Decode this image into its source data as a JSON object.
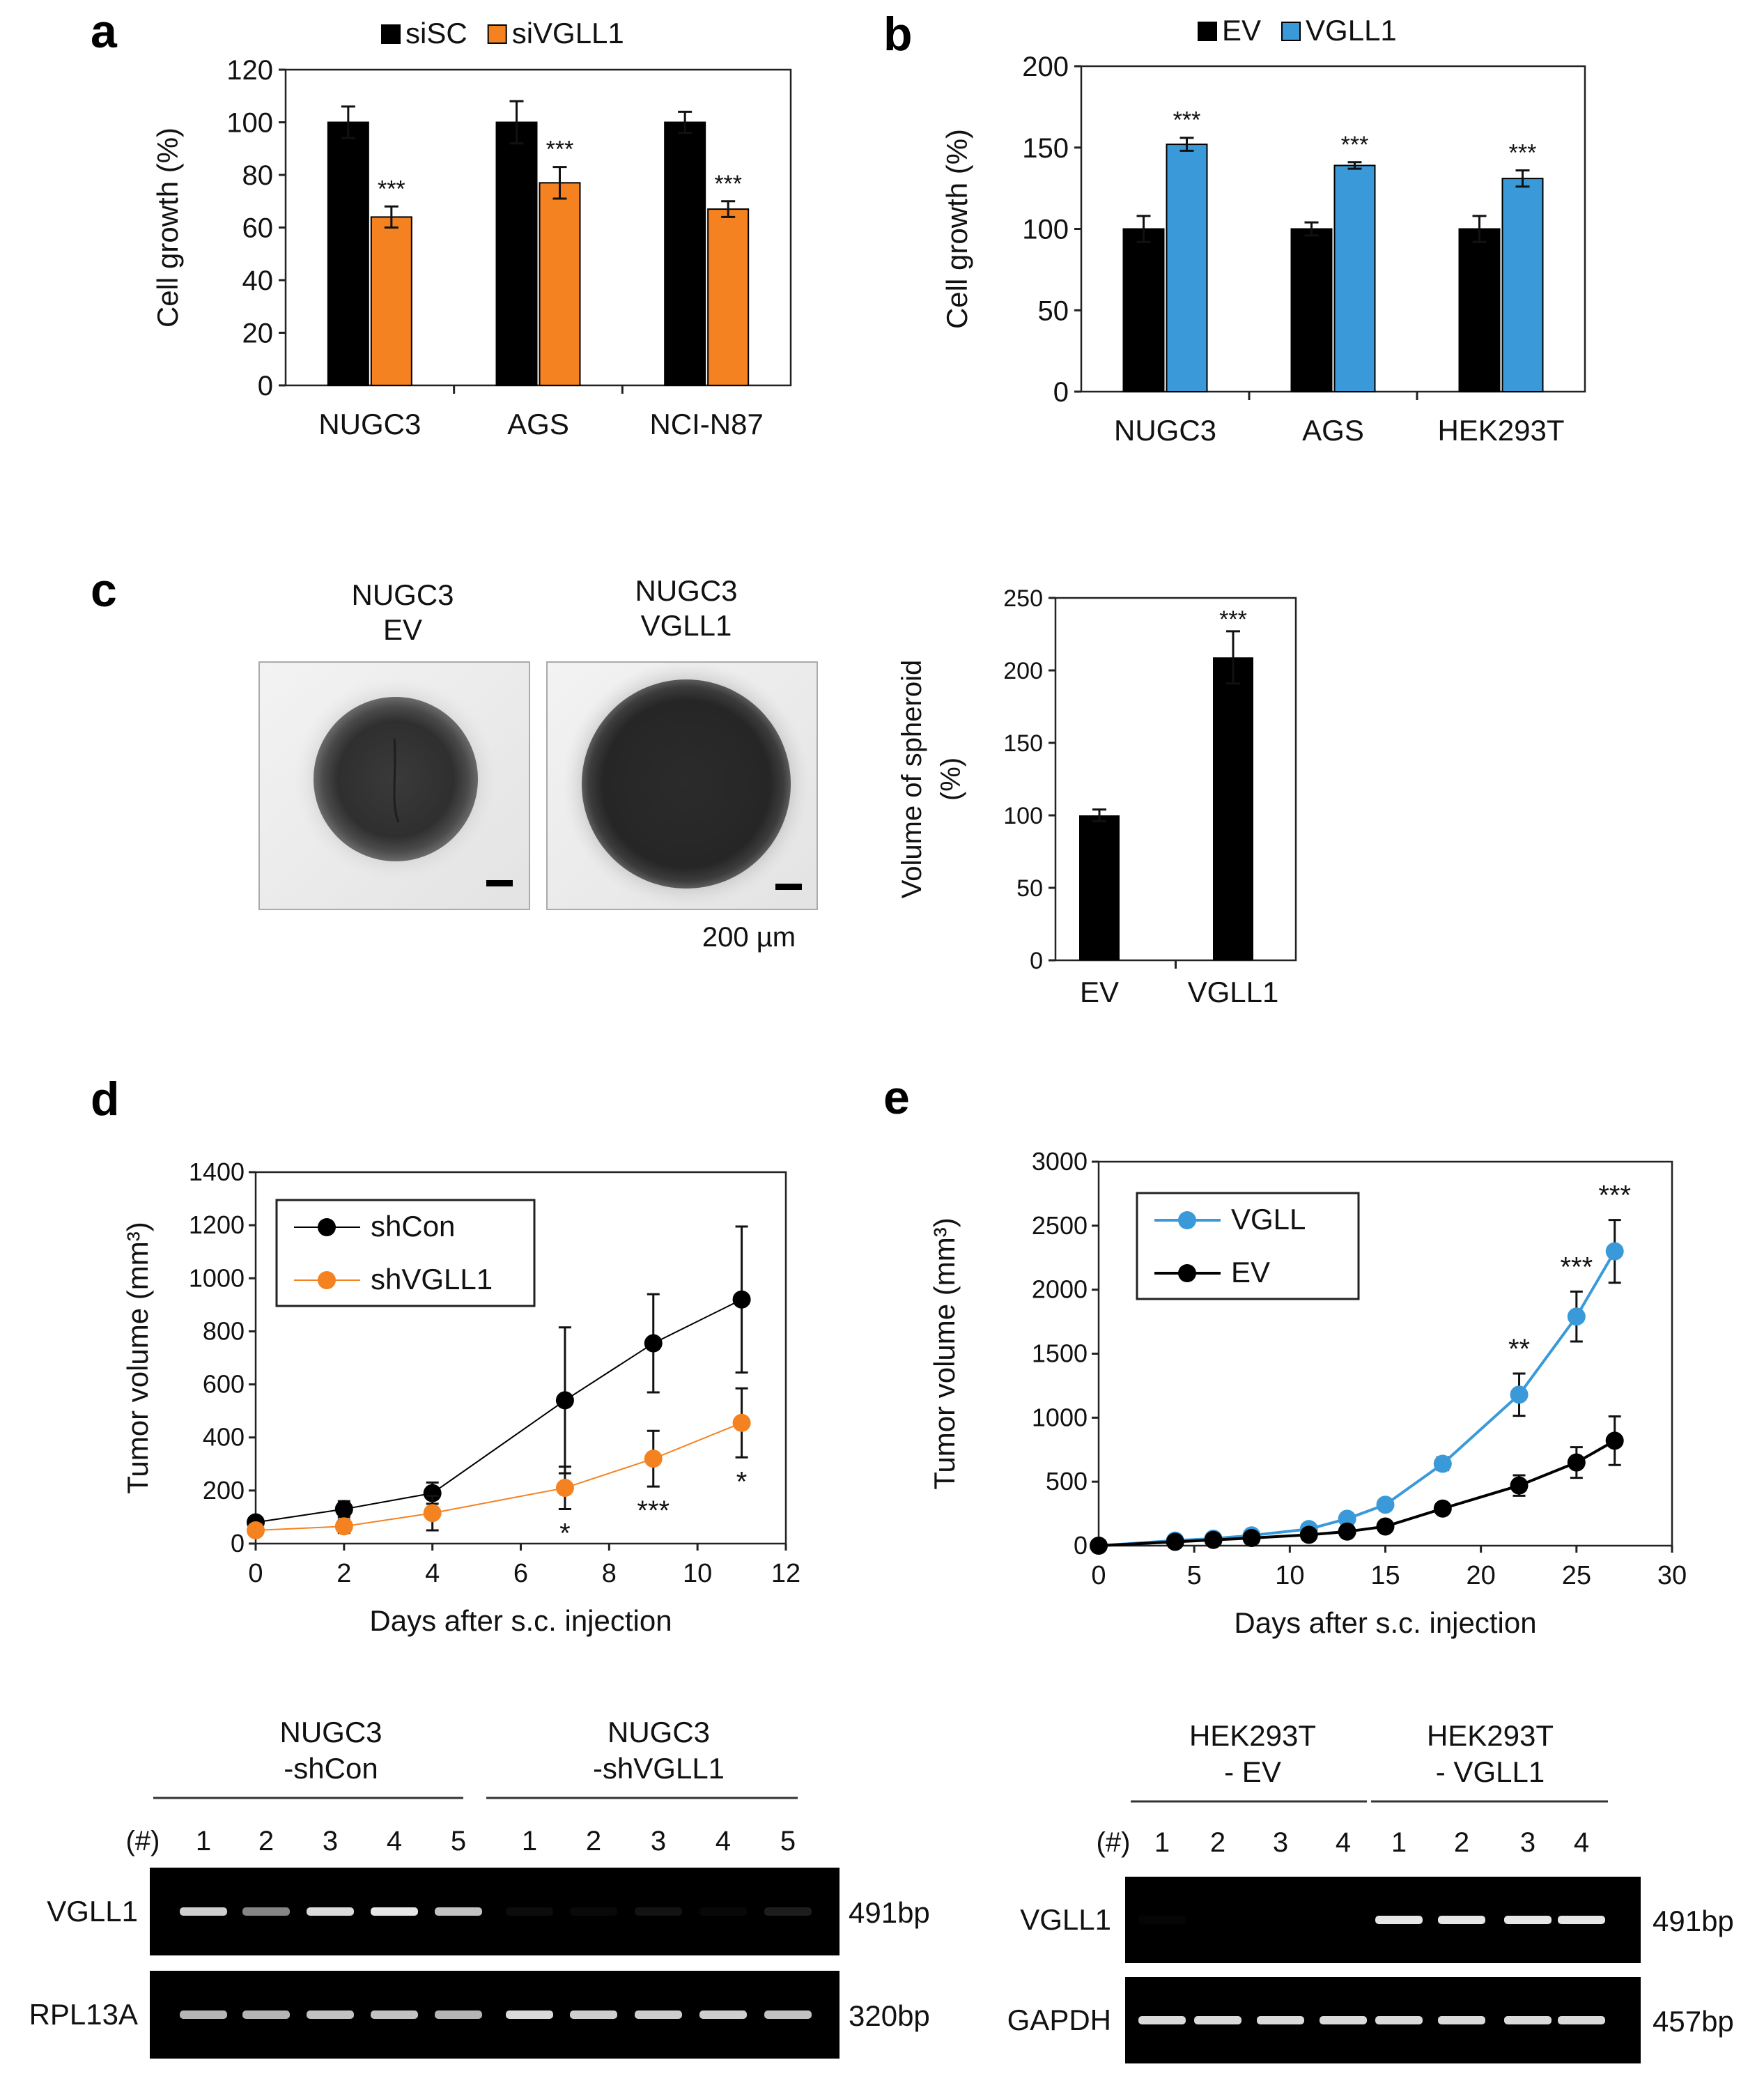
{
  "panels": {
    "a": {
      "label": "a"
    },
    "b": {
      "label": "b"
    },
    "c": {
      "label": "c",
      "image1_title": [
        "NUGC3",
        "EV"
      ],
      "image2_title": [
        "NUGC3",
        "VGLL1"
      ],
      "scale_bar": "200 µm"
    },
    "d": {
      "label": "d"
    },
    "e": {
      "label": "e"
    }
  },
  "colors": {
    "black": "#000000",
    "orange": "#f58220",
    "blue": "#3a9ad9",
    "gel_band": "#f2f2f2"
  },
  "chart_data": [
    {
      "id": "a",
      "type": "bar",
      "title": "",
      "ylabel": "Cell growth (%)",
      "xlabel": "",
      "ylim": [
        0,
        120
      ],
      "yticks": [
        0,
        20,
        40,
        60,
        80,
        100,
        120
      ],
      "categories": [
        "NUGC3",
        "AGS",
        "NCI-N87"
      ],
      "series": [
        {
          "name": "siSC",
          "values": [
            100,
            100,
            100
          ],
          "errors": [
            6,
            8,
            4
          ],
          "color": "#000000"
        },
        {
          "name": "siVGLL1",
          "values": [
            64,
            77,
            67
          ],
          "errors": [
            4,
            6,
            3
          ],
          "color": "#f58220"
        }
      ],
      "annotations": [
        "***",
        "***",
        "***"
      ],
      "legend": "top"
    },
    {
      "id": "b",
      "type": "bar",
      "title": "",
      "ylabel": "Cell growth (%)",
      "xlabel": "",
      "ylim": [
        0,
        200
      ],
      "yticks": [
        0,
        50,
        100,
        150,
        200
      ],
      "categories": [
        "NUGC3",
        "AGS",
        "HEK293T"
      ],
      "series": [
        {
          "name": "EV",
          "values": [
            100,
            100,
            100
          ],
          "errors": [
            8,
            4,
            8
          ],
          "color": "#000000"
        },
        {
          "name": "VGLL1",
          "values": [
            152,
            139,
            131
          ],
          "errors": [
            4,
            2,
            5
          ],
          "color": "#3a9ad9"
        }
      ],
      "annotations": [
        "***",
        "***",
        "***"
      ],
      "legend": "top"
    },
    {
      "id": "c",
      "type": "bar",
      "title": "",
      "ylabel": [
        "Volume of spheroid",
        "(%)"
      ],
      "xlabel": "",
      "ylim": [
        0,
        250
      ],
      "yticks": [
        0,
        50,
        100,
        150,
        200,
        250
      ],
      "categories": [
        "EV",
        "VGLL1"
      ],
      "values": [
        100,
        209
      ],
      "errors": [
        4,
        18
      ],
      "annotations": [
        "",
        "***"
      ]
    },
    {
      "id": "d",
      "type": "line",
      "title": "",
      "xlabel": "Days after s.c. injection",
      "ylabel": "Tumor volume (mm³)",
      "xlim": [
        0,
        12
      ],
      "xticks": [
        0,
        2,
        4,
        6,
        8,
        10,
        12
      ],
      "ylim": [
        0,
        1400
      ],
      "yticks": [
        0,
        200,
        400,
        600,
        800,
        1000,
        1200,
        1400
      ],
      "series": [
        {
          "name": "shCon",
          "color": "#000000",
          "x": [
            0,
            2,
            4,
            7,
            9,
            11
          ],
          "y": [
            80,
            130,
            190,
            540,
            755,
            920
          ],
          "errors": [
            20,
            30,
            40,
            275,
            185,
            275
          ]
        },
        {
          "name": "shVGLL1",
          "color": "#f58220",
          "x": [
            0,
            2,
            4,
            7,
            9,
            11
          ],
          "y": [
            50,
            65,
            115,
            210,
            320,
            455
          ],
          "errors": [
            15,
            25,
            65,
            80,
            105,
            130
          ]
        }
      ],
      "annotations": [
        {
          "x": 7,
          "text": "*"
        },
        {
          "x": 9,
          "text": "***"
        },
        {
          "x": 11,
          "text": "*"
        }
      ],
      "legend": "top-left"
    },
    {
      "id": "e",
      "type": "line",
      "title": "",
      "xlabel": "Days after s.c. injection",
      "ylabel": "Tumor volume (mm³)",
      "xlim": [
        0,
        30
      ],
      "xticks": [
        0,
        5,
        10,
        15,
        20,
        25,
        30
      ],
      "ylim": [
        0,
        3000
      ],
      "yticks": [
        0,
        500,
        1000,
        1500,
        2000,
        2500,
        3000
      ],
      "series": [
        {
          "name": "VGLL",
          "color": "#3a9ad9",
          "x": [
            0,
            4,
            6,
            8,
            11,
            13,
            15,
            18,
            22,
            25,
            27
          ],
          "y": [
            0,
            40,
            55,
            80,
            130,
            210,
            320,
            640,
            1180,
            1790,
            2300
          ],
          "errors": [
            5,
            10,
            10,
            15,
            20,
            30,
            40,
            50,
            165,
            195,
            245
          ]
        },
        {
          "name": "EV",
          "color": "#000000",
          "x": [
            0,
            4,
            6,
            8,
            11,
            13,
            15,
            18,
            22,
            25,
            27
          ],
          "y": [
            0,
            30,
            45,
            60,
            85,
            110,
            150,
            290,
            470,
            650,
            820
          ],
          "errors": [
            5,
            10,
            10,
            10,
            15,
            20,
            25,
            40,
            80,
            120,
            190
          ]
        }
      ],
      "annotations": [
        {
          "x": 22,
          "text": "**"
        },
        {
          "x": 25,
          "text": "***"
        },
        {
          "x": 27,
          "text": "***"
        }
      ],
      "legend": "top-left"
    }
  ],
  "gels": {
    "left": {
      "group1": [
        "NUGC3",
        "-shCon"
      ],
      "group2": [
        "NUGC3",
        "-shVGLL1"
      ],
      "hash": "(#)",
      "lanes": [
        "1",
        "2",
        "3",
        "4",
        "5",
        "1",
        "2",
        "3",
        "4",
        "5"
      ],
      "rows": [
        {
          "gene": "VGLL1",
          "size": "491bp",
          "intensity": [
            0.85,
            0.55,
            0.9,
            0.95,
            0.8,
            0.05,
            0.04,
            0.08,
            0.03,
            0.12
          ]
        },
        {
          "gene": "RPL13A",
          "size": "320bp",
          "intensity": [
            0.75,
            0.75,
            0.8,
            0.8,
            0.75,
            0.9,
            0.85,
            0.85,
            0.85,
            0.8
          ]
        }
      ]
    },
    "right": {
      "group1": [
        "HEK293T",
        "- EV"
      ],
      "group2": [
        "HEK293T",
        "- VGLL1"
      ],
      "hash": "(#)",
      "lanes": [
        "1",
        "2",
        "3",
        "4",
        "1",
        "2",
        "3",
        "4"
      ],
      "rows": [
        {
          "gene": "VGLL1",
          "size": "491bp",
          "intensity": [
            0.02,
            0.0,
            0.0,
            0.0,
            0.95,
            0.95,
            0.95,
            0.95
          ]
        },
        {
          "gene": "GAPDH",
          "size": "457bp",
          "intensity": [
            0.9,
            0.9,
            0.9,
            0.9,
            0.9,
            0.9,
            0.9,
            0.9
          ]
        }
      ]
    }
  }
}
